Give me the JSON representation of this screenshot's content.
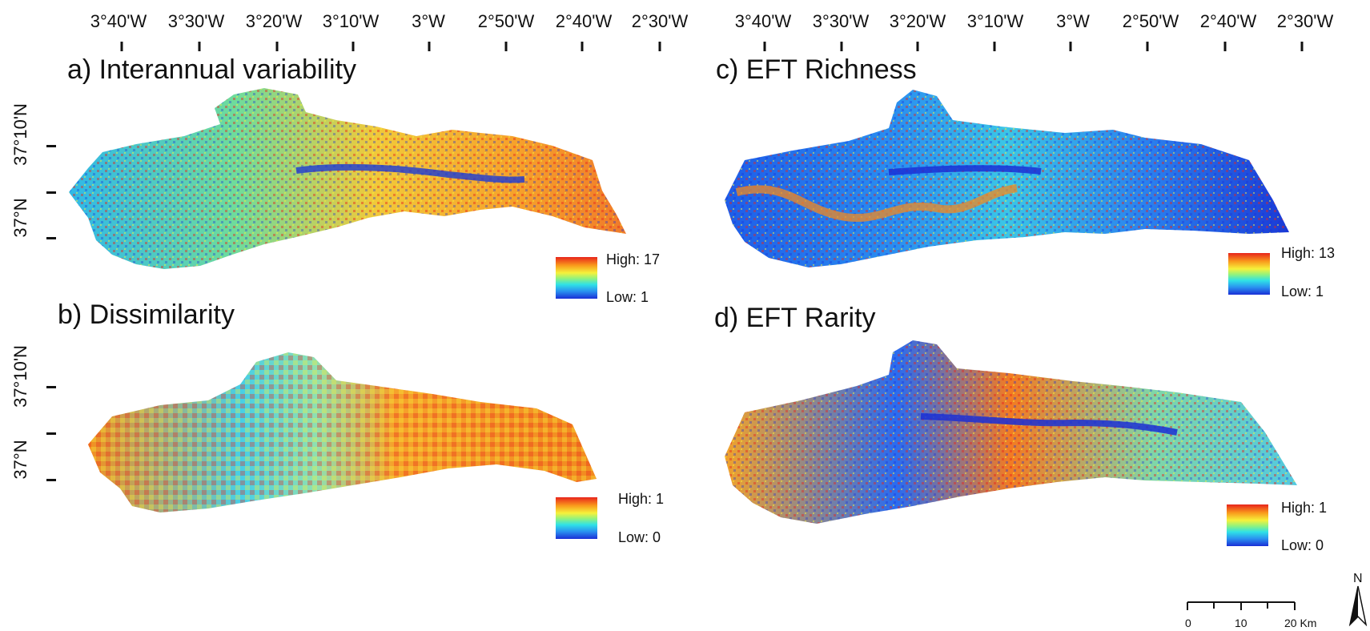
{
  "longitude_labels": [
    "3°40'W",
    "3°30'W",
    "3°20'W",
    "3°10'W",
    "3°W",
    "2°50'W",
    "2°40'W",
    "2°30'W"
  ],
  "latitude_labels": [
    "37°10'N",
    "37°N"
  ],
  "panels": {
    "a": {
      "title": "a) Interannual variability",
      "legend_high": "High: 17",
      "legend_low": "Low: 1"
    },
    "b": {
      "title": "b) Dissimilarity",
      "legend_high": "High: 1",
      "legend_low": "Low: 0"
    },
    "c": {
      "title": "c) EFT Richness",
      "legend_high": "High: 13",
      "legend_low": "Low: 1"
    },
    "d": {
      "title": "d) EFT Rarity",
      "legend_high": "High: 1",
      "legend_low": "Low: 0"
    }
  },
  "scale_bar": {
    "labels": [
      "0",
      "10",
      "20 Km"
    ]
  },
  "north_arrow": {
    "label": "N"
  },
  "colors": {
    "high": "#e8241c",
    "mid_high": "#f99a1c",
    "mid": "#f6f13b",
    "mid_low": "#2fe2e6",
    "low": "#1a2fd6"
  }
}
